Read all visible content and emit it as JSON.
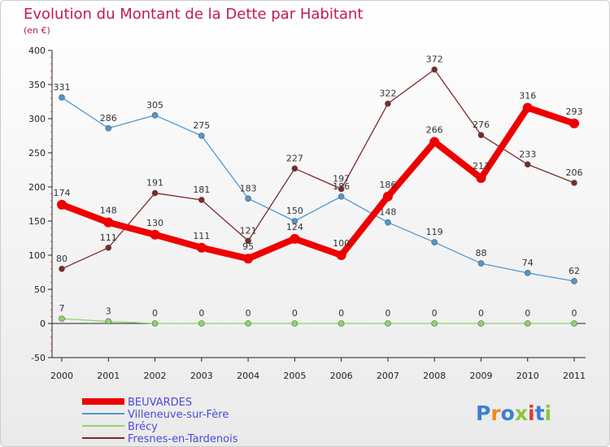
{
  "chart_data": {
    "type": "line",
    "title": "Evolution du Montant de la Dette par Habitant",
    "subtitle": "(en €)",
    "xlabel": "",
    "ylabel": "",
    "x": [
      "2000",
      "2001",
      "2002",
      "2003",
      "2004",
      "2005",
      "2006",
      "2007",
      "2008",
      "2009",
      "2010",
      "2011"
    ],
    "ylim": [
      -50,
      400
    ],
    "yticks": [
      -50,
      0,
      50,
      100,
      150,
      200,
      250,
      300,
      350,
      400
    ],
    "yticks_labels": [
      "-50",
      "0",
      "50",
      "100",
      "150",
      "200",
      "250",
      "300",
      "350",
      "400"
    ],
    "grid": false,
    "legend_position": "bottom-left",
    "series": [
      {
        "name": "BEUVARDES",
        "color": "#ee0000",
        "values": [
          174,
          148,
          130,
          111,
          95,
          124,
          100,
          186,
          266,
          213,
          316,
          293
        ],
        "labels": [
          "174",
          "148",
          "130",
          "111",
          "95",
          "124",
          "100",
          "186",
          "266",
          "213",
          "316",
          "293"
        ]
      },
      {
        "name": "Villeneuve-sur-Fère",
        "color": "#4f97d0",
        "values": [
          331,
          286,
          305,
          275,
          183,
          150,
          186,
          148,
          119,
          88,
          74,
          62
        ],
        "labels": [
          "331",
          "286",
          "305",
          "275",
          "183",
          "150",
          "186",
          "148",
          "119",
          "88",
          "74",
          "62"
        ]
      },
      {
        "name": "Brécy",
        "color": "#8fd46a",
        "values": [
          7,
          3,
          0,
          0,
          0,
          0,
          0,
          0,
          0,
          0,
          0,
          0
        ],
        "labels": [
          "7",
          "3",
          "0",
          "0",
          "0",
          "0",
          "0",
          "0",
          "0",
          "0",
          "0",
          "0"
        ]
      },
      {
        "name": "Fresnes-en-Tardenois",
        "color": "#7a2a2a",
        "values": [
          80,
          111,
          191,
          181,
          121,
          227,
          197,
          322,
          372,
          276,
          233,
          206
        ],
        "labels": [
          "80",
          "111",
          "191",
          "181",
          "121",
          "227",
          "197",
          "322",
          "372",
          "276",
          "233",
          "206"
        ]
      }
    ]
  },
  "logo": {
    "text": "Proxiti",
    "colors": [
      "#3a7fd5",
      "#f08a1c",
      "#3a7fd5",
      "#8cc63f",
      "#e53935",
      "#3a7fd5",
      "#8cc63f"
    ]
  }
}
